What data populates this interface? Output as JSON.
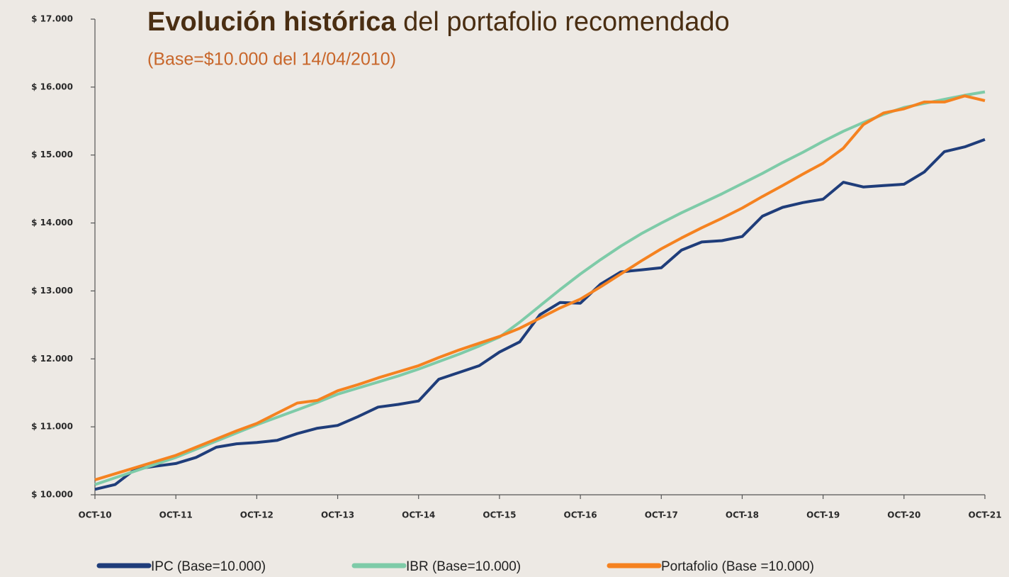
{
  "chart_data": {
    "type": "line",
    "title": "Evolución histórica",
    "title_rest": "del portafolio recomendado",
    "subtitle": "(Base=$10.000 del 14/04/2010)",
    "categories": [
      "OCT-10",
      null,
      null,
      null,
      "OCT-11",
      null,
      null,
      null,
      "OCT-12",
      null,
      null,
      null,
      "OCT-13",
      null,
      null,
      null,
      "OCT-14",
      null,
      null,
      null,
      "OCT-15",
      null,
      null,
      null,
      "OCT-16",
      null,
      null,
      null,
      "OCT-17",
      null,
      null,
      null,
      "OCT-18",
      null,
      null,
      null,
      "OCT-19",
      null,
      null,
      null,
      "OCT-20",
      null,
      null,
      null,
      "OCT-21"
    ],
    "ylim": [
      10000,
      17000
    ],
    "yticks": [
      {
        "value": 10000,
        "label": "$ 10.000"
      },
      {
        "value": 11000,
        "label": "$ 11.000"
      },
      {
        "value": 12000,
        "label": "$ 12.000"
      },
      {
        "value": 13000,
        "label": "$ 13.000"
      },
      {
        "value": 14000,
        "label": "$ 14.000"
      },
      {
        "value": 15000,
        "label": "$ 15.000"
      },
      {
        "value": 16000,
        "label": "$ 16.000"
      },
      {
        "value": 17000,
        "label": "$ 17.000"
      }
    ],
    "grid": false,
    "legend": "bottom",
    "series": [
      {
        "name": "IPC (Base=10.000)",
        "color": "#1f3d7a",
        "values": [
          10080,
          10150,
          10380,
          10420,
          10460,
          10550,
          10700,
          10750,
          10770,
          10800,
          10900,
          10980,
          11020,
          11150,
          11290,
          11330,
          11380,
          11700,
          11800,
          11900,
          12100,
          12250,
          12650,
          12830,
          12820,
          13100,
          13280,
          13310,
          13340,
          13600,
          13720,
          13740,
          13800,
          14100,
          14230,
          14300,
          14350,
          14600,
          14530,
          14550,
          14570,
          14750,
          15050,
          15120,
          15230
        ]
      },
      {
        "name": "IBR (Base=10.000)",
        "color": "#7ecba8",
        "values": [
          10150,
          10250,
          10350,
          10450,
          10550,
          10670,
          10790,
          10910,
          11030,
          11140,
          11250,
          11360,
          11480,
          11570,
          11660,
          11750,
          11850,
          11960,
          12070,
          12190,
          12320,
          12540,
          12780,
          13020,
          13250,
          13460,
          13660,
          13840,
          14000,
          14150,
          14290,
          14430,
          14580,
          14730,
          14890,
          15040,
          15200,
          15350,
          15480,
          15600,
          15700,
          15760,
          15820,
          15880,
          15930
        ]
      },
      {
        "name": "Portafolio (Base =10.000)",
        "color": "#f58220",
        "values": [
          10220,
          10310,
          10400,
          10490,
          10580,
          10700,
          10820,
          10940,
          11050,
          11200,
          11350,
          11390,
          11530,
          11620,
          11720,
          11810,
          11900,
          12020,
          12130,
          12230,
          12330,
          12450,
          12600,
          12750,
          12880,
          13060,
          13250,
          13440,
          13620,
          13780,
          13930,
          14070,
          14220,
          14390,
          14550,
          14720,
          14880,
          15100,
          15450,
          15620,
          15680,
          15780,
          15780,
          15870,
          15800
        ]
      }
    ]
  }
}
